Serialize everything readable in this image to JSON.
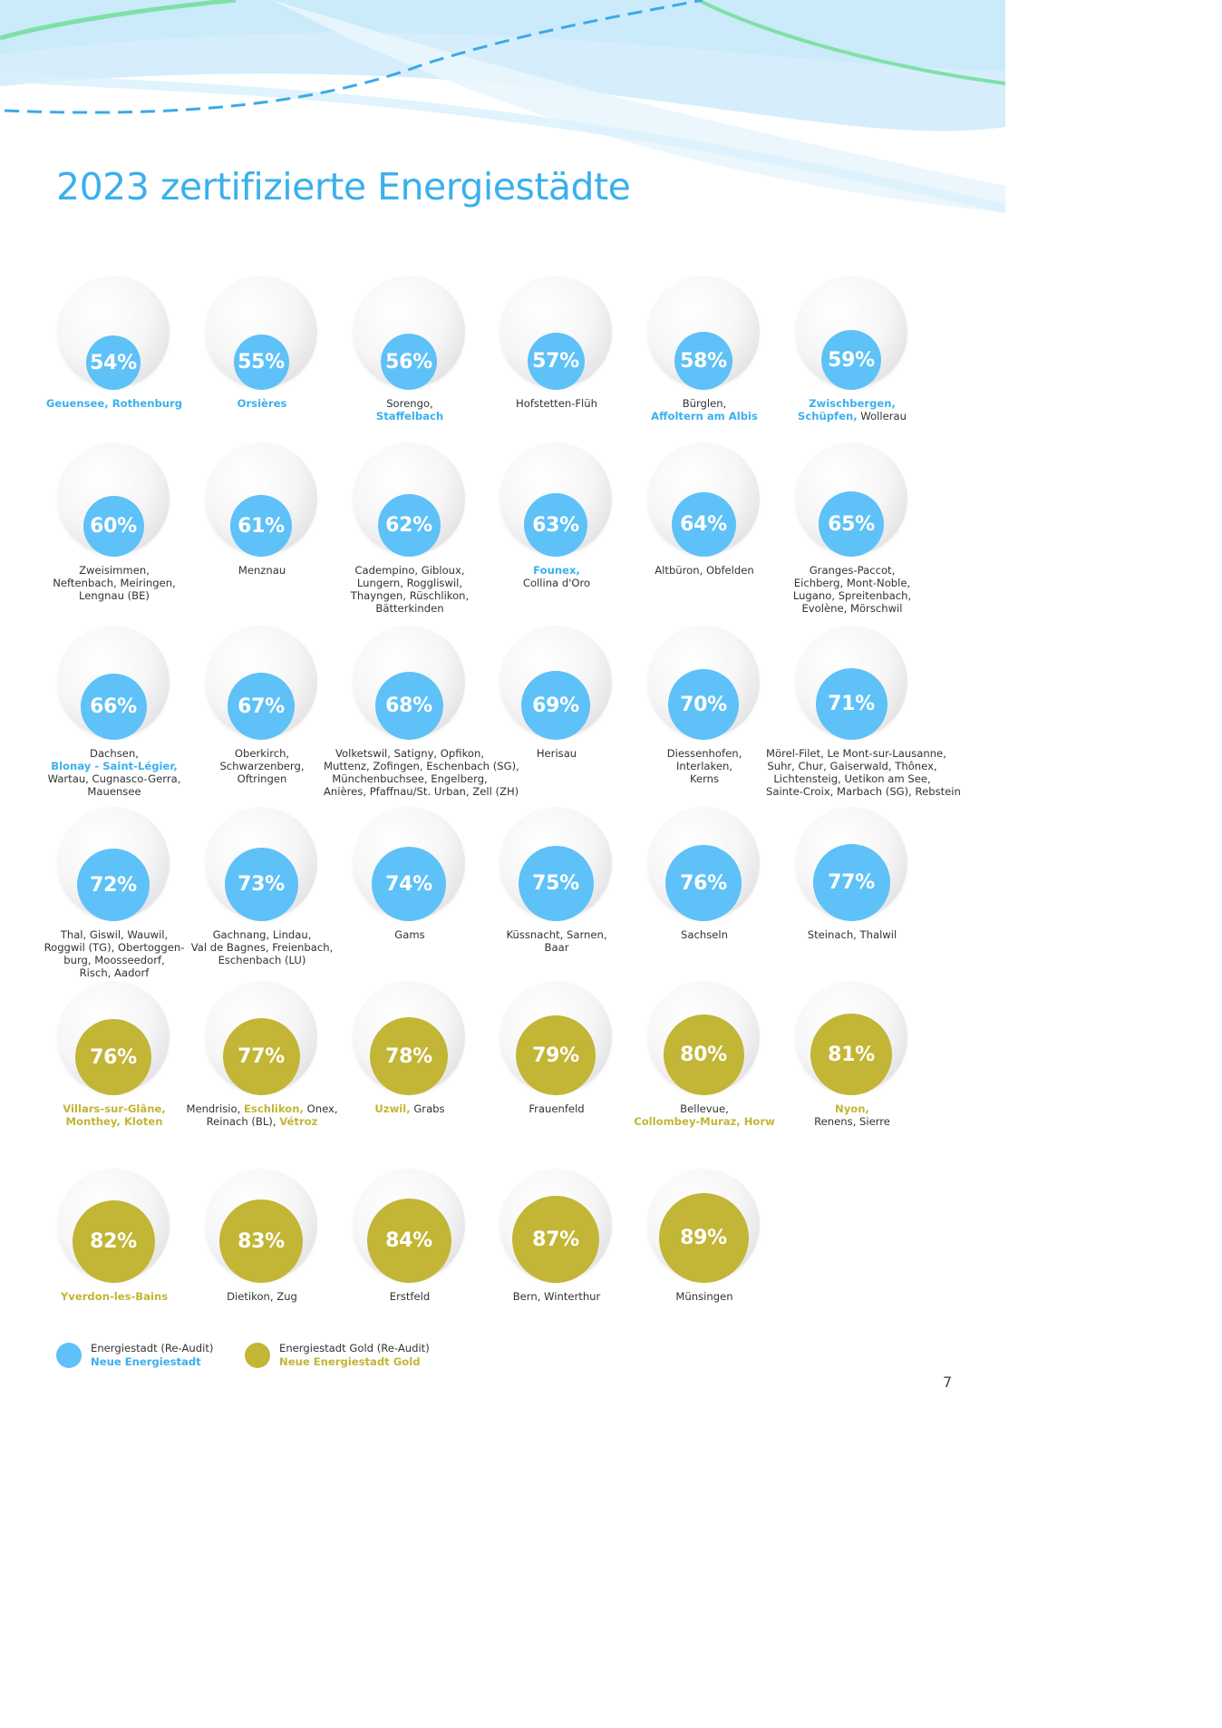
{
  "title": "2023 zertifizierte Energiestädte",
  "page_number": "7",
  "colors": {
    "blue": "#5ec1f7",
    "gold": "#c3b535",
    "title": "#3ab0ec"
  },
  "cells": [
    {
      "pct": "54%",
      "color": "blue",
      "disc": 0.54,
      "lines": [
        [
          [
            "Geuensee, Rothenburg",
            "b"
          ]
        ]
      ]
    },
    {
      "pct": "55%",
      "color": "blue",
      "disc": 0.55,
      "lines": [
        [
          [
            "Orsières",
            "b"
          ]
        ]
      ]
    },
    {
      "pct": "56%",
      "color": "blue",
      "disc": 0.56,
      "lines": [
        [
          [
            "Sorengo,",
            ""
          ]
        ],
        [
          [
            "Staffelbach",
            "b"
          ]
        ]
      ]
    },
    {
      "pct": "57%",
      "color": "blue",
      "disc": 0.57,
      "lines": [
        [
          [
            "Hofstetten-Flüh",
            ""
          ]
        ]
      ]
    },
    {
      "pct": "58%",
      "color": "blue",
      "disc": 0.58,
      "lines": [
        [
          [
            "Bürglen,",
            ""
          ]
        ],
        [
          [
            "Affoltern am Albis",
            "b"
          ]
        ]
      ]
    },
    {
      "pct": "59%",
      "color": "blue",
      "disc": 0.59,
      "lines": [
        [
          [
            "Zwischbergen,",
            "b"
          ]
        ],
        [
          [
            "Schüpfen,",
            "b"
          ],
          [
            " Wollerau",
            ""
          ]
        ]
      ]
    },
    {
      "pct": "60%",
      "color": "blue",
      "disc": 0.6,
      "lines": [
        [
          [
            "Zweisimmen,",
            ""
          ]
        ],
        [
          [
            "Neftenbach, Meiringen,",
            ""
          ]
        ],
        [
          [
            "Lengnau (BE)",
            ""
          ]
        ]
      ]
    },
    {
      "pct": "61%",
      "color": "blue",
      "disc": 0.61,
      "lines": [
        [
          [
            "Menznau",
            ""
          ]
        ]
      ]
    },
    {
      "pct": "62%",
      "color": "blue",
      "disc": 0.62,
      "lines": [
        [
          [
            "Cadempino, Gibloux,",
            ""
          ]
        ],
        [
          [
            "Lungern, Roggliswil,",
            ""
          ]
        ],
        [
          [
            "Thayngen, Rüschlikon,",
            ""
          ]
        ],
        [
          [
            "Bätterkinden",
            ""
          ]
        ]
      ]
    },
    {
      "pct": "63%",
      "color": "blue",
      "disc": 0.63,
      "lines": [
        [
          [
            "Founex,",
            "b"
          ]
        ],
        [
          [
            "Collina d'Oro",
            ""
          ]
        ]
      ]
    },
    {
      "pct": "64%",
      "color": "blue",
      "disc": 0.64,
      "lines": [
        [
          [
            "Altbüron, Obfelden",
            ""
          ]
        ]
      ]
    },
    {
      "pct": "65%",
      "color": "blue",
      "disc": 0.65,
      "lines": [
        [
          [
            "Granges-Paccot,",
            ""
          ]
        ],
        [
          [
            "Eichberg, Mont-Noble,",
            ""
          ]
        ],
        [
          [
            "Lugano, Spreitenbach,",
            ""
          ]
        ],
        [
          [
            "Evolène, Mörschwil",
            ""
          ]
        ]
      ]
    },
    {
      "pct": "66%",
      "color": "blue",
      "disc": 0.66,
      "lines": [
        [
          [
            "Dachsen,",
            ""
          ]
        ],
        [
          [
            "Blonay - Saint-Légier,",
            "b"
          ]
        ],
        [
          [
            "Wartau, Cugnasco-Gerra,",
            ""
          ]
        ],
        [
          [
            "Mauensee",
            ""
          ]
        ]
      ]
    },
    {
      "pct": "67%",
      "color": "blue",
      "disc": 0.67,
      "lines": [
        [
          [
            "Oberkirch,",
            ""
          ]
        ],
        [
          [
            "Schwarzenberg,",
            ""
          ]
        ],
        [
          [
            "Oftringen",
            ""
          ]
        ]
      ]
    },
    {
      "pct": "68%",
      "color": "blue",
      "disc": 0.68,
      "lines": [
        [
          [
            "Volketswil, Satigny, Opfikon,",
            ""
          ]
        ],
        [
          [
            "Muttenz, Zofingen, Eschenbach (SG),",
            ""
          ]
        ],
        [
          [
            "Münchenbuchsee, Engelberg,",
            ""
          ]
        ],
        [
          [
            "Anières, Pfaffnau/St. Urban, Zell (ZH)",
            ""
          ]
        ]
      ]
    },
    {
      "pct": "69%",
      "color": "blue",
      "disc": 0.69,
      "lines": [
        [
          [
            "Herisau",
            ""
          ]
        ]
      ]
    },
    {
      "pct": "70%",
      "color": "blue",
      "disc": 0.7,
      "lines": [
        [
          [
            "Diessenhofen,",
            ""
          ]
        ],
        [
          [
            "Interlaken,",
            ""
          ]
        ],
        [
          [
            "Kerns",
            ""
          ]
        ]
      ]
    },
    {
      "pct": "71%",
      "color": "blue",
      "disc": 0.71,
      "lines": [
        [
          [
            "Mörel-Filet, Le Mont-sur-Lausanne,",
            ""
          ]
        ],
        [
          [
            "Suhr, Chur, Gaiserwald, Thônex,",
            ""
          ]
        ],
        [
          [
            "Lichtensteig, Uetikon am See,",
            ""
          ]
        ],
        [
          [
            "Sainte-Croix, Marbach (SG), Rebstein",
            ""
          ]
        ]
      ]
    },
    {
      "pct": "72%",
      "color": "blue",
      "disc": 0.72,
      "lines": [
        [
          [
            "Thal, Giswil, Wauwil,",
            ""
          ]
        ],
        [
          [
            "Roggwil (TG), Obertoggen-",
            ""
          ]
        ],
        [
          [
            "burg, Moosseedorf,",
            ""
          ]
        ],
        [
          [
            "Risch, Aadorf",
            ""
          ]
        ]
      ]
    },
    {
      "pct": "73%",
      "color": "blue",
      "disc": 0.73,
      "lines": [
        [
          [
            "Gachnang, Lindau,",
            ""
          ]
        ],
        [
          [
            "Val de Bagnes, Freienbach,",
            ""
          ]
        ],
        [
          [
            "Eschenbach (LU)",
            ""
          ]
        ]
      ]
    },
    {
      "pct": "74%",
      "color": "blue",
      "disc": 0.74,
      "lines": [
        [
          [
            "Gams",
            ""
          ]
        ]
      ]
    },
    {
      "pct": "75%",
      "color": "blue",
      "disc": 0.75,
      "lines": [
        [
          [
            "Küssnacht, Sarnen,",
            ""
          ]
        ],
        [
          [
            "Baar",
            ""
          ]
        ]
      ]
    },
    {
      "pct": "76%",
      "color": "blue",
      "disc": 0.76,
      "lines": [
        [
          [
            "Sachseln",
            ""
          ]
        ]
      ]
    },
    {
      "pct": "77%",
      "color": "blue",
      "disc": 0.77,
      "lines": [
        [
          [
            "Steinach, Thalwil",
            ""
          ]
        ]
      ]
    },
    {
      "pct": "76%",
      "color": "gold",
      "disc": 0.76,
      "lines": [
        [
          [
            "Villars-sur-Glâne,",
            "b"
          ]
        ],
        [
          [
            "Monthey, Kloten",
            "b"
          ]
        ]
      ]
    },
    {
      "pct": "77%",
      "color": "gold",
      "disc": 0.77,
      "lines": [
        [
          [
            "Mendrisio, ",
            ""
          ],
          [
            "Eschlikon,",
            "b"
          ],
          [
            " Onex,",
            ""
          ]
        ],
        [
          [
            "Reinach (BL), ",
            ""
          ],
          [
            "Vétroz",
            "b"
          ]
        ]
      ]
    },
    {
      "pct": "78%",
      "color": "gold",
      "disc": 0.78,
      "lines": [
        [
          [
            "Uzwil,",
            "b"
          ],
          [
            " Grabs",
            ""
          ]
        ]
      ]
    },
    {
      "pct": "79%",
      "color": "gold",
      "disc": 0.79,
      "lines": [
        [
          [
            "Frauenfeld",
            ""
          ]
        ]
      ]
    },
    {
      "pct": "80%",
      "color": "gold",
      "disc": 0.8,
      "lines": [
        [
          [
            "Bellevue,",
            ""
          ]
        ],
        [
          [
            "Collombey-Muraz, Horw",
            "b"
          ]
        ]
      ]
    },
    {
      "pct": "81%",
      "color": "gold",
      "disc": 0.81,
      "lines": [
        [
          [
            "Nyon,",
            "b"
          ]
        ],
        [
          [
            "Renens, Sierre",
            ""
          ]
        ]
      ]
    },
    {
      "pct": "82%",
      "color": "gold",
      "disc": 0.82,
      "lines": [
        [
          [
            "Yverdon-les-Bains",
            "b"
          ]
        ]
      ]
    },
    {
      "pct": "83%",
      "color": "gold",
      "disc": 0.83,
      "lines": [
        [
          [
            "Dietikon, Zug",
            ""
          ]
        ]
      ]
    },
    {
      "pct": "84%",
      "color": "gold",
      "disc": 0.84,
      "lines": [
        [
          [
            "Erstfeld",
            ""
          ]
        ]
      ]
    },
    {
      "pct": "87%",
      "color": "gold",
      "disc": 0.87,
      "lines": [
        [
          [
            "Bern, Winterthur",
            ""
          ]
        ]
      ]
    },
    {
      "pct": "89%",
      "color": "gold",
      "disc": 0.89,
      "lines": [
        [
          [
            "Münsingen",
            ""
          ]
        ]
      ]
    }
  ],
  "legend": [
    {
      "color": "blue",
      "line1": "Energiestadt (Re-Audit)",
      "line2": "Neue Energiestadt"
    },
    {
      "color": "gold",
      "line1": "Energiestadt Gold (Re-Audit)",
      "line2": "Neue Energiestadt Gold"
    }
  ]
}
